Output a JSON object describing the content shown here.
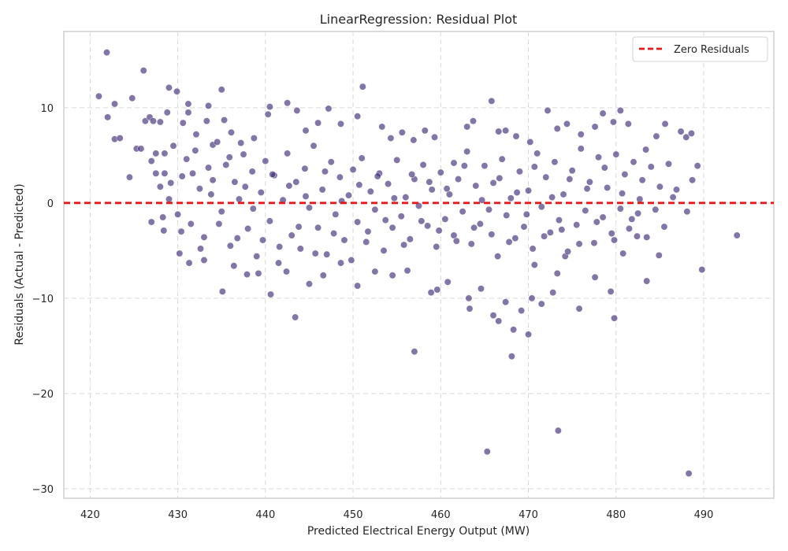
{
  "chart_data": {
    "type": "scatter",
    "title": "LinearRegression: Residual Plot",
    "xlabel": "Predicted Electrical Energy Output (MW)",
    "ylabel": "Residuals (Actual - Predicted)",
    "xlim": [
      417,
      498
    ],
    "ylim": [
      -31,
      18
    ],
    "xticks": [
      420,
      430,
      440,
      450,
      460,
      470,
      480,
      490
    ],
    "yticks": [
      10,
      0,
      -10,
      -20,
      -30
    ],
    "xtick_labels": [
      "420",
      "430",
      "440",
      "450",
      "460",
      "470",
      "480",
      "490"
    ],
    "ytick_labels": [
      "10",
      "0",
      "−10",
      "−20",
      "−30"
    ],
    "grid": true,
    "grid_style": "dashed",
    "legend_position": "top-right",
    "series": [
      {
        "type": "scatter",
        "color": "#3f2d76",
        "points": [
          [
            421.0,
            11.2
          ],
          [
            421.9,
            15.8
          ],
          [
            422.0,
            9.0
          ],
          [
            422.8,
            10.4
          ],
          [
            422.8,
            6.7
          ],
          [
            423.4,
            6.8
          ],
          [
            424.5,
            2.7
          ],
          [
            424.8,
            11.0
          ],
          [
            425.3,
            5.7
          ],
          [
            425.8,
            5.7
          ],
          [
            426.1,
            13.9
          ],
          [
            426.3,
            8.6
          ],
          [
            426.8,
            9.0
          ],
          [
            427.2,
            8.6
          ],
          [
            427.5,
            5.2
          ],
          [
            428.8,
            9.5
          ],
          [
            429.0,
            12.1
          ],
          [
            429.9,
            11.7
          ],
          [
            428.0,
            8.5
          ],
          [
            428.5,
            3.1
          ],
          [
            430.6,
            8.4
          ],
          [
            431.2,
            10.4
          ],
          [
            431.2,
            9.5
          ],
          [
            432.1,
            7.2
          ],
          [
            433.3,
            8.6
          ],
          [
            433.5,
            10.2
          ],
          [
            435.0,
            11.9
          ],
          [
            434.0,
            6.1
          ],
          [
            435.3,
            8.7
          ],
          [
            436.1,
            7.4
          ],
          [
            437.2,
            6.3
          ],
          [
            438.7,
            6.8
          ],
          [
            440.3,
            9.3
          ],
          [
            440.5,
            10.1
          ],
          [
            442.5,
            10.5
          ],
          [
            443.6,
            9.7
          ],
          [
            444.6,
            7.6
          ],
          [
            446.0,
            8.4
          ],
          [
            447.2,
            9.9
          ],
          [
            448.6,
            8.3
          ],
          [
            450.5,
            9.1
          ],
          [
            451.1,
            12.2
          ],
          [
            453.3,
            8.0
          ],
          [
            454.3,
            6.8
          ],
          [
            455.6,
            7.4
          ],
          [
            456.9,
            6.6
          ],
          [
            458.2,
            7.6
          ],
          [
            459.3,
            6.9
          ],
          [
            461.5,
            4.2
          ],
          [
            463.0,
            8.0
          ],
          [
            463.7,
            8.6
          ],
          [
            465.8,
            10.7
          ],
          [
            466.6,
            7.5
          ],
          [
            467.4,
            7.6
          ],
          [
            468.6,
            7.0
          ],
          [
            470.2,
            6.4
          ],
          [
            472.2,
            9.7
          ],
          [
            473.3,
            7.8
          ],
          [
            474.4,
            8.3
          ],
          [
            476.0,
            7.2
          ],
          [
            477.6,
            8.0
          ],
          [
            478.5,
            9.4
          ],
          [
            479.7,
            8.5
          ],
          [
            480.5,
            9.7
          ],
          [
            481.4,
            8.3
          ],
          [
            483.4,
            5.6
          ],
          [
            484.6,
            7.0
          ],
          [
            485.6,
            8.3
          ],
          [
            487.4,
            7.5
          ],
          [
            488.0,
            6.9
          ],
          [
            488.6,
            7.3
          ],
          [
            489.3,
            3.9
          ],
          [
            488.7,
            2.4
          ],
          [
            486.9,
            1.4
          ],
          [
            488.1,
            -0.9
          ],
          [
            493.8,
            -3.4
          ],
          [
            489.8,
            -7.0
          ],
          [
            484.9,
            -5.5
          ],
          [
            483.5,
            -8.2
          ],
          [
            482.4,
            -3.5
          ],
          [
            480.8,
            -5.3
          ],
          [
            479.8,
            -12.1
          ],
          [
            479.4,
            -9.3
          ],
          [
            477.6,
            -7.8
          ],
          [
            475.8,
            -11.1
          ],
          [
            474.2,
            -5.6
          ],
          [
            473.3,
            -7.4
          ],
          [
            472.8,
            -9.4
          ],
          [
            471.5,
            -10.6
          ],
          [
            470.7,
            -6.5
          ],
          [
            470.4,
            -10.0
          ],
          [
            470.0,
            -13.8
          ],
          [
            469.2,
            -11.3
          ],
          [
            468.3,
            -13.3
          ],
          [
            468.1,
            -16.1
          ],
          [
            467.4,
            -10.4
          ],
          [
            466.6,
            -12.4
          ],
          [
            466.0,
            -11.8
          ],
          [
            465.3,
            -26.1
          ],
          [
            464.6,
            -9.0
          ],
          [
            463.2,
            -10.0
          ],
          [
            463.3,
            -11.1
          ],
          [
            460.8,
            -8.3
          ],
          [
            459.6,
            -9.1
          ],
          [
            458.9,
            -9.4
          ],
          [
            457.0,
            -15.6
          ],
          [
            456.2,
            -7.1
          ],
          [
            454.5,
            -7.6
          ],
          [
            452.5,
            -7.2
          ],
          [
            450.5,
            -8.7
          ],
          [
            448.6,
            -6.3
          ],
          [
            446.6,
            -7.6
          ],
          [
            445.0,
            -8.5
          ],
          [
            443.4,
            -12.0
          ],
          [
            442.4,
            -7.2
          ],
          [
            440.6,
            -9.6
          ],
          [
            439.2,
            -7.4
          ],
          [
            437.9,
            -7.5
          ],
          [
            436.4,
            -6.6
          ],
          [
            435.1,
            -9.3
          ],
          [
            433.0,
            -6.0
          ],
          [
            431.3,
            -6.3
          ],
          [
            430.2,
            -5.3
          ],
          [
            428.4,
            -2.9
          ],
          [
            427.0,
            -2.0
          ],
          [
            473.4,
            -23.9
          ],
          [
            488.3,
            -28.4
          ],
          [
            427.0,
            4.4
          ],
          [
            427.5,
            3.1
          ],
          [
            428.0,
            1.7
          ],
          [
            428.5,
            5.2
          ],
          [
            429.0,
            0.4
          ],
          [
            429.5,
            6.0
          ],
          [
            430.0,
            -1.2
          ],
          [
            430.5,
            2.8
          ],
          [
            431.0,
            4.6
          ],
          [
            431.5,
            -2.2
          ],
          [
            432.0,
            5.5
          ],
          [
            432.5,
            1.5
          ],
          [
            433.0,
            -3.6
          ],
          [
            433.5,
            3.7
          ],
          [
            434.0,
            2.4
          ],
          [
            434.5,
            6.4
          ],
          [
            435.0,
            -0.9
          ],
          [
            435.5,
            4.0
          ],
          [
            436.0,
            -4.5
          ],
          [
            436.5,
            2.2
          ],
          [
            437.0,
            0.4
          ],
          [
            437.5,
            5.1
          ],
          [
            438.0,
            -2.7
          ],
          [
            438.5,
            3.3
          ],
          [
            439.0,
            -5.6
          ],
          [
            439.5,
            1.1
          ],
          [
            440.0,
            4.4
          ],
          [
            440.5,
            -1.9
          ],
          [
            441.0,
            2.9
          ],
          [
            441.5,
            -6.3
          ],
          [
            442.0,
            0.3
          ],
          [
            442.5,
            5.2
          ],
          [
            443.0,
            -3.4
          ],
          [
            443.5,
            2.2
          ],
          [
            444.0,
            -4.8
          ],
          [
            444.5,
            3.6
          ],
          [
            445.0,
            -0.5
          ],
          [
            445.5,
            6.0
          ],
          [
            446.0,
            -2.6
          ],
          [
            446.5,
            1.4
          ],
          [
            447.0,
            -5.4
          ],
          [
            447.5,
            4.3
          ],
          [
            448.0,
            -1.2
          ],
          [
            448.5,
            2.7
          ],
          [
            449.0,
            -3.9
          ],
          [
            449.5,
            0.8
          ],
          [
            450.0,
            3.5
          ],
          [
            450.5,
            -2.0
          ],
          [
            451.0,
            4.7
          ],
          [
            451.5,
            -4.1
          ],
          [
            452.0,
            1.2
          ],
          [
            452.5,
            -0.7
          ],
          [
            453.0,
            3.1
          ],
          [
            453.5,
            -5.0
          ],
          [
            454.0,
            2.0
          ],
          [
            454.5,
            -2.6
          ],
          [
            455.0,
            4.5
          ],
          [
            455.5,
            -1.4
          ],
          [
            456.0,
            0.6
          ],
          [
            456.5,
            -3.8
          ],
          [
            457.0,
            2.5
          ],
          [
            457.5,
            -0.3
          ],
          [
            458.0,
            4.0
          ],
          [
            458.5,
            -2.4
          ],
          [
            459.0,
            1.4
          ],
          [
            459.5,
            -4.6
          ],
          [
            460.0,
            3.2
          ],
          [
            460.5,
            -1.7
          ],
          [
            461.0,
            0.9
          ],
          [
            461.5,
            -3.4
          ],
          [
            462.0,
            2.5
          ],
          [
            462.5,
            -0.9
          ],
          [
            463.0,
            5.4
          ],
          [
            463.5,
            -4.3
          ],
          [
            464.0,
            1.8
          ],
          [
            464.5,
            -2.2
          ],
          [
            465.0,
            3.9
          ],
          [
            465.5,
            -0.7
          ],
          [
            466.0,
            2.1
          ],
          [
            466.5,
            -5.6
          ],
          [
            467.0,
            4.6
          ],
          [
            467.5,
            -1.3
          ],
          [
            468.0,
            0.5
          ],
          [
            468.5,
            -3.7
          ],
          [
            469.0,
            3.3
          ],
          [
            469.5,
            -2.5
          ],
          [
            470.0,
            1.3
          ],
          [
            470.5,
            -4.8
          ],
          [
            471.0,
            5.2
          ],
          [
            471.5,
            -0.4
          ],
          [
            472.0,
            2.7
          ],
          [
            472.5,
            -3.1
          ],
          [
            473.0,
            4.3
          ],
          [
            473.5,
            -1.8
          ],
          [
            474.0,
            0.9
          ],
          [
            474.5,
            -5.1
          ],
          [
            475.0,
            3.4
          ],
          [
            475.5,
            -2.3
          ],
          [
            476.0,
            5.7
          ],
          [
            476.5,
            -0.8
          ],
          [
            477.0,
            2.2
          ],
          [
            477.5,
            -4.2
          ],
          [
            478.0,
            4.8
          ],
          [
            478.5,
            -1.5
          ],
          [
            479.0,
            1.6
          ],
          [
            479.5,
            -3.2
          ],
          [
            480.0,
            5.1
          ],
          [
            480.5,
            -0.6
          ],
          [
            481.0,
            3.0
          ],
          [
            481.5,
            -2.7
          ],
          [
            482.0,
            4.3
          ],
          [
            482.5,
            -1.1
          ],
          [
            483.0,
            2.4
          ],
          [
            483.5,
            -3.6
          ],
          [
            484.0,
            3.8
          ],
          [
            484.5,
            -0.7
          ],
          [
            485.0,
            1.7
          ],
          [
            485.5,
            -2.5
          ],
          [
            486.0,
            4.1
          ],
          [
            486.5,
            0.6
          ],
          [
            428.3,
            -1.5
          ],
          [
            429.2,
            2.1
          ],
          [
            430.4,
            -3.0
          ],
          [
            431.7,
            3.1
          ],
          [
            432.6,
            -4.8
          ],
          [
            433.8,
            0.9
          ],
          [
            434.7,
            -2.2
          ],
          [
            435.9,
            4.8
          ],
          [
            436.8,
            -3.7
          ],
          [
            437.7,
            1.7
          ],
          [
            438.6,
            -0.6
          ],
          [
            439.7,
            -3.9
          ],
          [
            440.8,
            3.0
          ],
          [
            441.6,
            -4.6
          ],
          [
            442.7,
            1.8
          ],
          [
            443.8,
            -2.5
          ],
          [
            444.6,
            0.7
          ],
          [
            445.7,
            -5.3
          ],
          [
            446.8,
            3.3
          ],
          [
            447.8,
            -3.2
          ],
          [
            448.7,
            0.2
          ],
          [
            449.8,
            -6.0
          ],
          [
            450.7,
            1.9
          ],
          [
            451.7,
            -3.0
          ],
          [
            452.8,
            2.8
          ],
          [
            453.7,
            -1.8
          ],
          [
            454.7,
            0.5
          ],
          [
            455.8,
            -4.4
          ],
          [
            456.7,
            3.0
          ],
          [
            457.8,
            -1.9
          ],
          [
            458.7,
            2.2
          ],
          [
            459.8,
            -2.9
          ],
          [
            460.7,
            1.5
          ],
          [
            461.8,
            -4.0
          ],
          [
            462.7,
            3.9
          ],
          [
            463.8,
            -2.6
          ],
          [
            464.7,
            0.3
          ],
          [
            465.8,
            -3.3
          ],
          [
            466.7,
            2.6
          ],
          [
            467.8,
            -4.1
          ],
          [
            468.7,
            1.1
          ],
          [
            469.8,
            -1.2
          ],
          [
            470.7,
            3.8
          ],
          [
            471.8,
            -3.5
          ],
          [
            472.7,
            0.6
          ],
          [
            473.8,
            -2.8
          ],
          [
            474.7,
            2.5
          ],
          [
            475.8,
            -4.3
          ],
          [
            476.7,
            1.5
          ],
          [
            477.8,
            -2.0
          ],
          [
            478.7,
            3.7
          ],
          [
            479.8,
            -3.9
          ],
          [
            480.7,
            1.0
          ],
          [
            481.8,
            -1.7
          ],
          [
            482.7,
            0.4
          ]
        ]
      }
    ],
    "reference_lines": [
      {
        "type": "horizontal",
        "y": 0,
        "name": "Zero Residuals",
        "color": "#e31a1c",
        "style": "dashed"
      }
    ]
  }
}
